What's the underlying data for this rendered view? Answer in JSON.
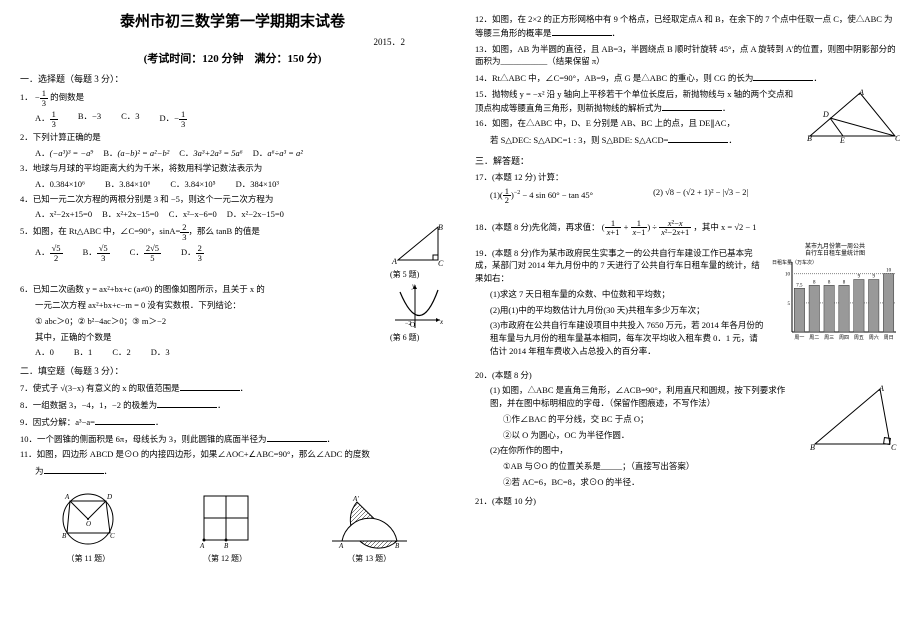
{
  "title": "泰州市初三数学第一学期期末试卷",
  "date": "2015．2",
  "subtitle": "(考试时间：120 分钟　满分：150 分)",
  "s1_head": "一．选择题（每题 3 分）：",
  "q1": {
    "stem_a": "1．",
    "stem_b": "的倒数是",
    "o1": "A．",
    "o2": "B．−3",
    "o3": "C．3",
    "o4": "D．"
  },
  "q2": {
    "stem": "2．下列计算正确的是",
    "oA_l": "A．",
    "oB_l": "B．",
    "oC_l": "C．",
    "oD_l": "D．",
    "oA": "(−a³)³ = −a⁹",
    "oB": "(a−b)² = a²−b²",
    "oC": "3a³+2a³ = 5a⁶",
    "oD": "a⁶÷a³ = a²"
  },
  "q3": {
    "stem": "3．地球与月球的平均距离大约为千米，将数用科学记数法表示为",
    "o1": "A．0.384×10⁶",
    "o2": "B．3.84×10⁶",
    "o3": "C．3.84×10⁵",
    "o4": "D．384×10³"
  },
  "q4": {
    "stem": "4．已知一元二次方程的两根分别是 3 和 −5，则这个一元二次方程为",
    "o1": "A．x²−2x+15=0",
    "o2": "B．x²+2x−15=0",
    "o3": "C．x²−x−6=0",
    "o4": "D．x²−2x−15=0"
  },
  "q5": {
    "stem_a": "5．如图，在 Rt△ABC 中，∠C=90°，sinA=",
    "stem_b": "，那么 tanB 的值是",
    "o1": "A．",
    "o2": "B．",
    "o3": "C．",
    "o4": "D．",
    "cap": "(第 5 题)"
  },
  "q6": {
    "stem": "6．已知二次函数 y = ax²+bx+c (a≠0) 的图像如图所示，且关于 x 的",
    "l2": "一元二次方程 ax²+bx+c−m = 0 没有实数根．下列结论：",
    "l3": "① abc＞0；② b²−4ac＞0；③ m＞−2",
    "l4": "其中，正确的个数是",
    "o1": "A．0",
    "o2": "B．1",
    "o3": "C．2",
    "o4": "D．3",
    "cap": "(第 6 题)"
  },
  "s2_head": "二．填空题（每题 3 分）：",
  "q7": "7．使式子 √(3−x) 有意义的 x 的取值范围是",
  "q8": "8．一组数据 3，−4，1，−2 的极差为",
  "q9": "9．因式分解：a³−a=",
  "q10": "10．一个圆锥的侧面积是 6π，母线长为 3，则此圆锥的底面半径为",
  "q11_a": "11．如图，四边形 ABCD 是⊙O 的内接四边形，如果∠AOC+∠ABC=90°，那么∠ADC 的度数",
  "q11_b": "为",
  "cap11": "（第 11 题）",
  "cap12": "（第 12 题）",
  "cap13": "（第 13 题）",
  "q12": "12．如图，在 2×2 的正方形网格中有 9 个格点，已经取定点A 和 B，在余下的 7 个点中任取一点 C，使△ABC 为等腰三角形的概率是",
  "q13": "13．如图，AB 为半圆的直径，且 AB=3，半圆绕点 B 顺时针旋转 45°，点 A 旋转到 A'的位置，则图中阴影部分的面积为___________（结果保留 π）",
  "q14": "14．Rt△ABC 中，∠C=90°，AB=9，点 G 是△ABC 的重心，则 CG 的长为",
  "q15": "15．抛物线 y = −x² 沿 y 轴向上平移若干个单位长度后，新抛物线与 x 轴的两个交点和顶点构成等腰直角三角形，则新抛物线的解析式为",
  "q16_a": "16．如图，在△ABC 中，D、E 分别是 AB、BC 上的点，且 DE∥AC，",
  "q16_b": "若 S△DEC: S△ADC=1 : 3，则 S△BDE: S△ACD=",
  "s3_head": "三．解答题：",
  "q17_h": "17．(本题 12 分) 计算：",
  "q17_1l": "(1)",
  "q17_1r": " − 4 sin 60° − tan 45°",
  "q17_2l": "(2) √8 − (√2 + 1)² − |√3 − 2|",
  "q18_a": "18．(本题 8 分)先化简，再求值：",
  "q18_b": "，其中 x = √2 − 1",
  "q19_h": "19．(本题 8 分)作为某市政府民生实事之一的公共自行车建设工作已基本完成，某部门对 2014 年九月份中的 7 天进行了公共自行车日租车量的统计，结果如右：",
  "q19_1": "(1)求这 7 天日租车量的众数、中位数和平均数；",
  "q19_2": "(2)用(1)中的平均数估计九月份(30 天)共租车多少万车次；",
  "q19_3": "(3)市政府在公共自行车建设项目中共投入 7650 万元，若 2014 年各月份的租车量与九月份的租车量基本相同，每车次平均收入租车费 0．1 元，请估计 2014 年租车费收入占总投入的百分率．",
  "chart_title_1": "某市九月份第一周公共",
  "chart_title_2": "自行车日租车量统计图",
  "chart_ylabel": "日租车量（万车次）",
  "chart_bars": [
    7.5,
    8,
    8,
    8,
    9,
    9,
    10
  ],
  "chart_cats": [
    "周一",
    "周二",
    "周三",
    "周四",
    "周五",
    "周六",
    "周日"
  ],
  "chart_grid": [
    5,
    10
  ],
  "chart_colors": {
    "fill": "#999",
    "stroke": "#333"
  },
  "q20_h": "20．(本题 8 分)",
  "q20_a": "(1) 如图，△ABC 是直角三角形，∠ACB=90°，利用直尺和圆规，按下列要求作图，并在图中标明相应的字母．（保留作图痕迹，不写作法）",
  "q20_a1": "①作∠BAC 的平分线，交 BC 于点 O；",
  "q20_a2": "②以 O 为圆心，OC 为半径作圆．",
  "q20_b": "(2)在你所作的图中，",
  "q20_b1": "①AB 与⊙O 的位置关系是_____；（直接写出答案）",
  "q20_b2": "②若 AC=6，BC=8，求⊙O 的半径．",
  "q21_h": "21．(本题 10 分)",
  "labels": {
    "A": "A",
    "B": "B",
    "C": "C",
    "D": "D",
    "E": "E",
    "O": "O"
  }
}
